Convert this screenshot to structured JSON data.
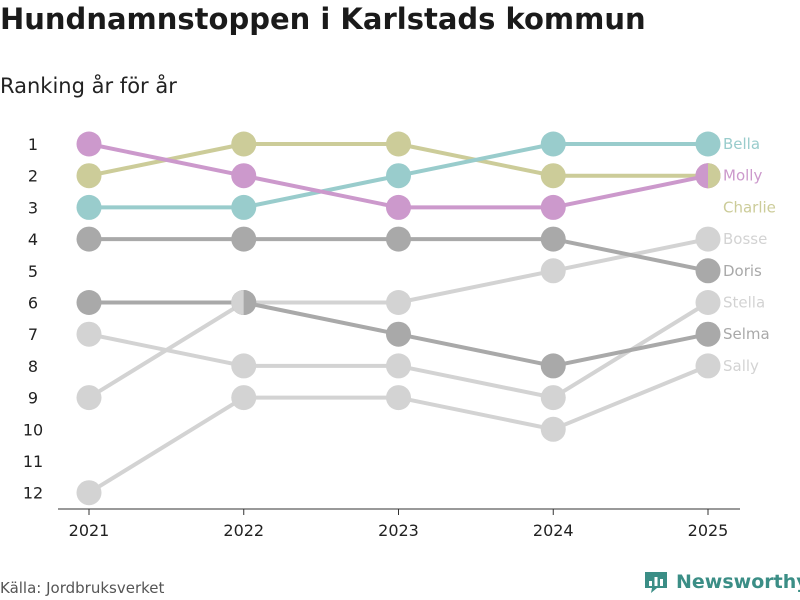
{
  "title": "Hundnamnstoppen i Karlstads kommun",
  "subtitle": "Ranking år för år",
  "source": "Källa: Jordbruksverket",
  "brand": {
    "name": "Newsworthy",
    "color": "#3b8e86",
    "icon": "bar-chart-icon"
  },
  "chart_data": {
    "type": "line",
    "categories": [
      "2021",
      "2022",
      "2023",
      "2024",
      "2025"
    ],
    "y_ticks": [
      "1",
      "2",
      "3",
      "4",
      "5",
      "6",
      "7",
      "8",
      "9",
      "10",
      "11",
      "12"
    ],
    "ylim": [
      1,
      12
    ],
    "y_reversed": true,
    "xlabel": "",
    "ylabel": "",
    "series": [
      {
        "name": "Sally",
        "values": [
          12,
          9,
          9,
          10,
          8
        ],
        "color": "#d3d3d3"
      },
      {
        "name": "Stella",
        "values": [
          7,
          8,
          8,
          9,
          6
        ],
        "color": "#d3d3d3"
      },
      {
        "name": "Bosse",
        "values": [
          9,
          6,
          6,
          5,
          4
        ],
        "color": "#d3d3d3"
      },
      {
        "name": "Selma",
        "values": [
          6,
          6,
          7,
          8,
          7
        ],
        "color": "#a9a9a9"
      },
      {
        "name": "Doris",
        "values": [
          4,
          4,
          4,
          4,
          5
        ],
        "color": "#a9a9a9"
      },
      {
        "name": "Charlie",
        "values": [
          2,
          1,
          1,
          2,
          2
        ],
        "color": "#cccc99"
      },
      {
        "name": "Bella",
        "values": [
          3,
          3,
          2,
          1,
          1
        ],
        "color": "#99cccc"
      },
      {
        "name": "Molly",
        "values": [
          1,
          2,
          3,
          3,
          2
        ],
        "color": "#cc99cc"
      }
    ]
  }
}
